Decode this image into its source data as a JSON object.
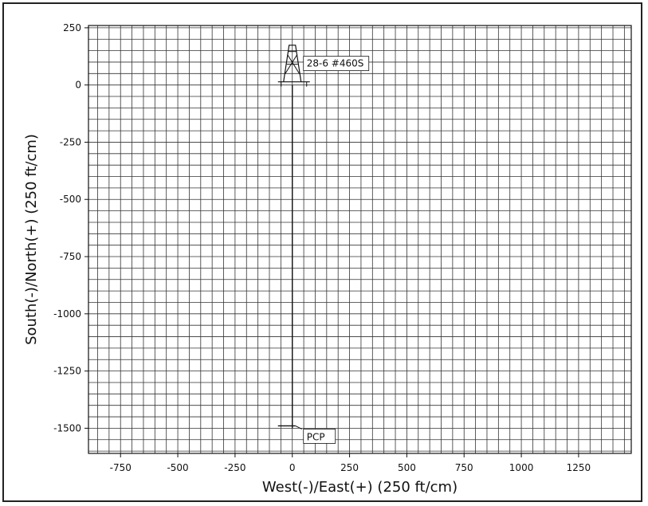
{
  "chart_data": {
    "type": "scatter",
    "title": "",
    "xlabel": "West(-)/East(+) (250 ft/cm)",
    "ylabel": "South(-)/North(+) (250 ft/cm)",
    "xlim": [
      -890,
      1480
    ],
    "ylim": [
      -1610,
      260
    ],
    "x_ticks": [
      -750,
      -500,
      -250,
      0,
      250,
      500,
      750,
      1000,
      1250
    ],
    "y_ticks": [
      250,
      0,
      -250,
      -500,
      -750,
      -1000,
      -1250,
      -1500
    ],
    "grid": true,
    "grid_minor_step": 50,
    "well_path": [
      {
        "x": 0,
        "y": 0
      },
      {
        "x": 0,
        "y": -1500
      }
    ],
    "annotations": [
      {
        "label": "28-6 #460S",
        "x": 0,
        "y": 0,
        "marker": "rig-icon"
      },
      {
        "label": "PCP",
        "x": 0,
        "y": -1500,
        "marker": "target-icon"
      }
    ],
    "colors": {
      "line": "#111111",
      "grid": "#333333",
      "background": "#ffffff"
    }
  }
}
